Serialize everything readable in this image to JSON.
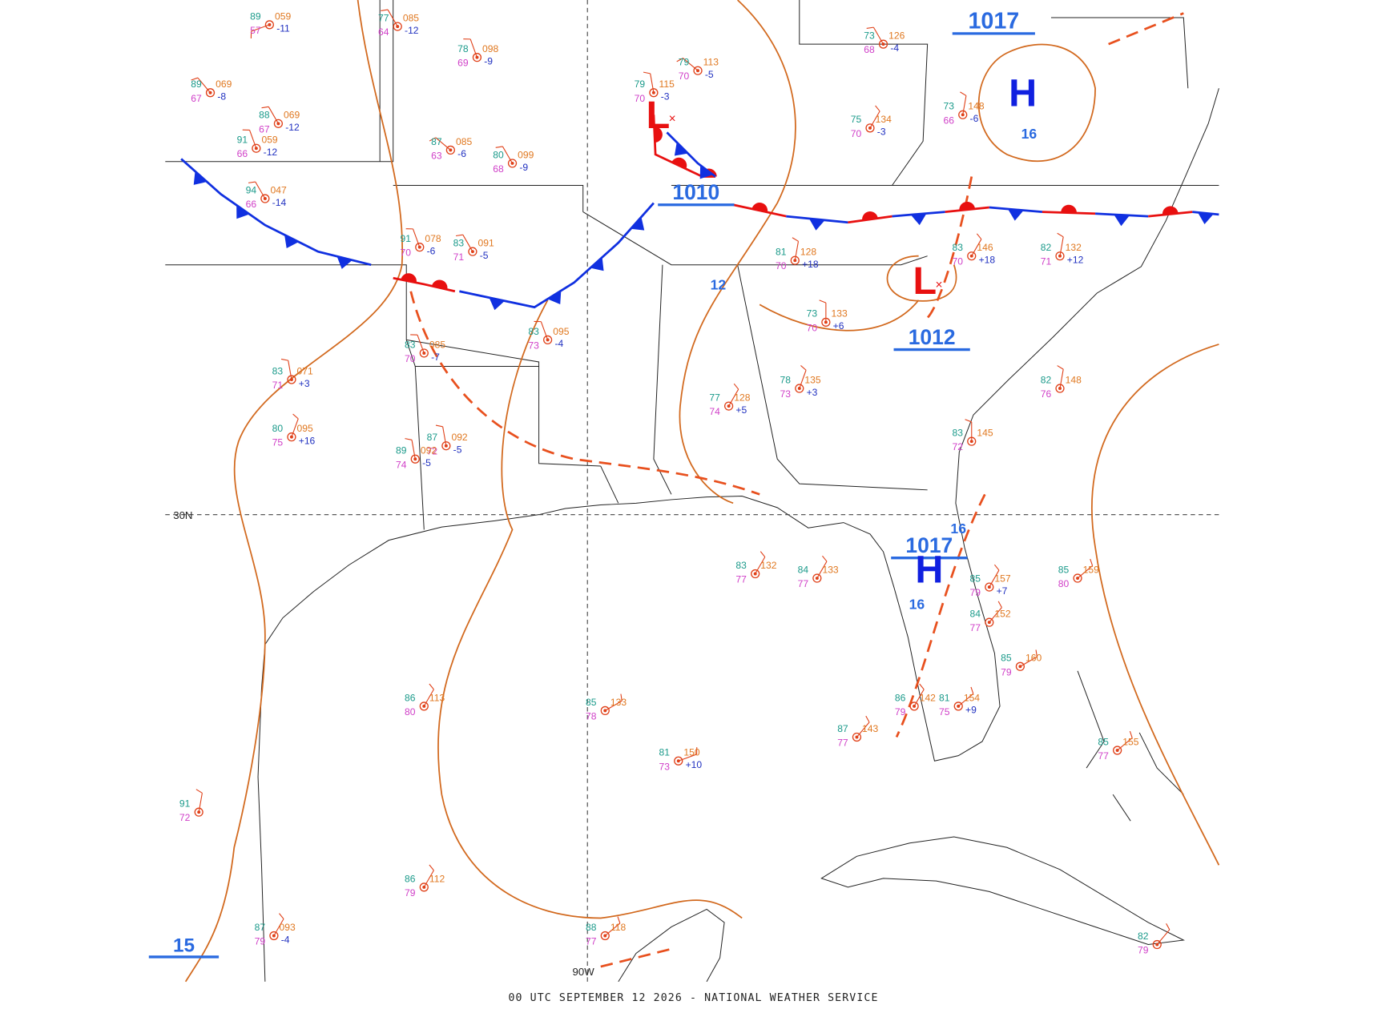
{
  "footer": "00 UTC SEPTEMBER 12 2026 - NATIONAL WEATHER SERVICE",
  "grid_labels": [
    "30N",
    "90W"
  ],
  "pressure_labels": [
    "1017",
    "1010",
    "1012",
    "1017",
    "15",
    "16",
    "12",
    "16",
    "16"
  ],
  "centers": [
    "H",
    "H",
    "L",
    "L"
  ],
  "stations": [
    {
      "temp": "89",
      "pressure": "059",
      "tendency": "-11",
      "dew": "57"
    },
    {
      "temp": "77",
      "pressure": "085",
      "tendency": "-12",
      "dew": "64"
    },
    {
      "temp": "78",
      "pressure": "098",
      "tendency": "-9",
      "dew": "69"
    },
    {
      "temp": "89",
      "pressure": "069",
      "tendency": "-8",
      "dew": "67"
    },
    {
      "temp": "88",
      "pressure": "069",
      "tendency": "-12",
      "dew": "67"
    },
    {
      "temp": "91",
      "pressure": "059",
      "tendency": "-12",
      "dew": "66"
    },
    {
      "temp": "87",
      "pressure": "085",
      "tendency": "-6",
      "dew": "63"
    },
    {
      "temp": "80",
      "pressure": "099",
      "tendency": "-9",
      "dew": "68"
    },
    {
      "temp": "94",
      "pressure": "047",
      "tendency": "-14",
      "dew": "66"
    },
    {
      "temp": "91",
      "pressure": "078",
      "tendency": "-6",
      "dew": "70"
    },
    {
      "temp": "83",
      "pressure": "091",
      "tendency": "-5",
      "dew": "71"
    },
    {
      "temp": "79",
      "pressure": "115",
      "tendency": "-3",
      "dew": "70"
    },
    {
      "temp": "79",
      "pressure": "113",
      "tendency": "-5",
      "dew": "70"
    },
    {
      "temp": "73",
      "pressure": "126",
      "tendency": "-4",
      "dew": "68"
    },
    {
      "temp": "75",
      "pressure": "134",
      "tendency": "-3",
      "dew": "70"
    },
    {
      "temp": "73",
      "pressure": "148",
      "tendency": "-6",
      "dew": "66"
    },
    {
      "temp": "81",
      "pressure": "128",
      "tendency": "+18",
      "dew": "70"
    },
    {
      "temp": "83",
      "pressure": "146",
      "tendency": "+18",
      "dew": "70"
    },
    {
      "temp": "82",
      "pressure": "132",
      "tendency": "+12",
      "dew": "71"
    },
    {
      "temp": "73",
      "pressure": "133",
      "tendency": "+6",
      "dew": "70"
    },
    {
      "temp": "78",
      "pressure": "135",
      "tendency": "+3",
      "dew": "73"
    },
    {
      "temp": "77",
      "pressure": "128",
      "tendency": "+5",
      "dew": "74"
    },
    {
      "temp": "83",
      "pressure": "085",
      "tendency": "-7",
      "dew": "70"
    },
    {
      "temp": "83",
      "pressure": "095",
      "tendency": "-4",
      "dew": "73"
    },
    {
      "temp": "83",
      "pressure": "071",
      "tendency": "+3",
      "dew": "71"
    },
    {
      "temp": "80",
      "pressure": "095",
      "tendency": "+16",
      "dew": "75"
    },
    {
      "temp": "87",
      "pressure": "092",
      "tendency": "-5",
      "dew": "72"
    },
    {
      "temp": "89",
      "pressure": "092",
      "tendency": "-5",
      "dew": "74"
    },
    {
      "temp": "82",
      "pressure": "148",
      "dew": "76"
    },
    {
      "temp": "83",
      "pressure": "145",
      "dew": "72"
    },
    {
      "temp": "83",
      "pressure": "132",
      "dew": "77"
    },
    {
      "temp": "84",
      "pressure": "133",
      "dew": "77"
    },
    {
      "temp": "85",
      "pressure": "159",
      "dew": "80"
    },
    {
      "temp": "85",
      "pressure": "157",
      "tendency": "+7",
      "dew": "79"
    },
    {
      "temp": "84",
      "pressure": "152",
      "dew": "77"
    },
    {
      "temp": "86",
      "pressure": "113",
      "dew": "80"
    },
    {
      "temp": "85",
      "pressure": "133",
      "dew": "78"
    },
    {
      "temp": "81",
      "pressure": "150",
      "tendency": "+10",
      "dew": "73"
    },
    {
      "temp": "85",
      "pressure": "155",
      "dew": "77"
    },
    {
      "temp": "86",
      "pressure": "142",
      "dew": "79"
    },
    {
      "temp": "87",
      "pressure": "143",
      "dew": "77"
    },
    {
      "temp": "81",
      "pressure": "154",
      "tendency": "+9",
      "dew": "75"
    },
    {
      "temp": "86",
      "pressure": "112",
      "dew": "79"
    },
    {
      "temp": "88",
      "pressure": "118",
      "dew": "77"
    },
    {
      "temp": "91",
      "dew": "72"
    },
    {
      "temp": "87",
      "pressure": "093",
      "tendency": "-4",
      "dew": "79"
    },
    {
      "temp": "82",
      "dew": "79"
    },
    {
      "temp": "85",
      "pressure": "160",
      "dew": "79"
    }
  ]
}
